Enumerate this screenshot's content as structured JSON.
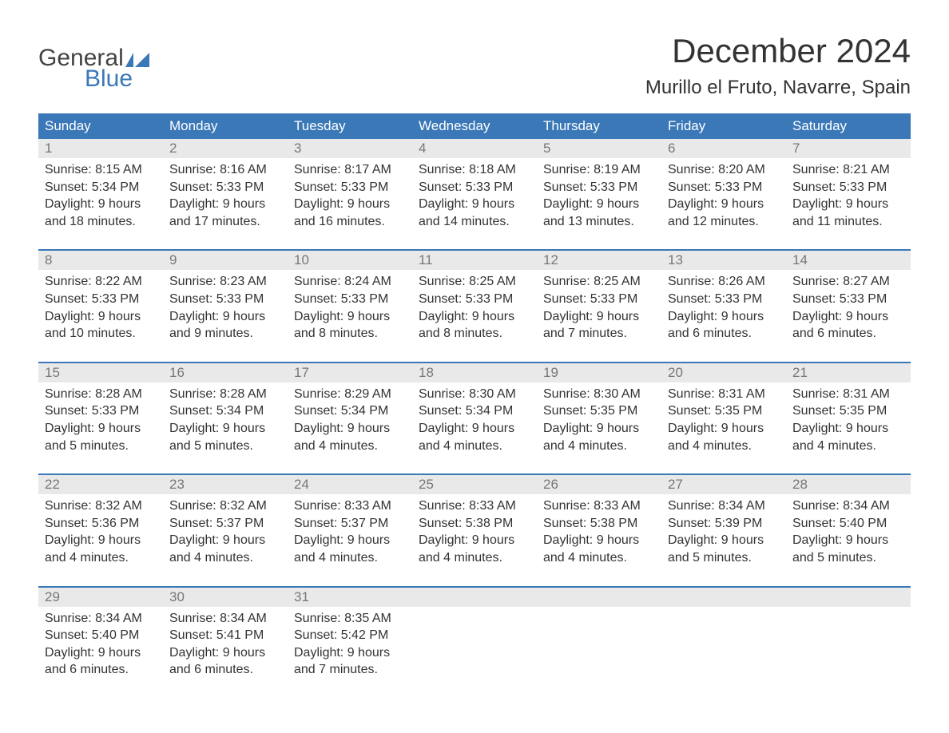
{
  "logo": {
    "word1": "General",
    "word2": "Blue"
  },
  "title": "December 2024",
  "location": "Murillo el Fruto, Navarre, Spain",
  "colors": {
    "header_bg": "#3a78b8",
    "header_text": "#ffffff",
    "daynum_bg": "#e9e9e9",
    "daynum_text": "#777777",
    "body_text": "#333333",
    "week_divider": "#3a78b8",
    "page_bg": "#ffffff",
    "logo_gray": "#444444",
    "logo_blue": "#3a78b8"
  },
  "typography": {
    "title_fontsize": 42,
    "location_fontsize": 24,
    "dayheader_fontsize": 17,
    "cell_fontsize": 16,
    "font_family": "Arial"
  },
  "layout": {
    "columns": 7,
    "grid_type": "calendar",
    "week_rows": 5
  },
  "day_headers": [
    "Sunday",
    "Monday",
    "Tuesday",
    "Wednesday",
    "Thursday",
    "Friday",
    "Saturday"
  ],
  "labels": {
    "sunrise": "Sunrise:",
    "sunset": "Sunset:",
    "daylight": "Daylight:"
  },
  "days": [
    {
      "n": "1",
      "sunrise": "8:15 AM",
      "sunset": "5:34 PM",
      "daylight": "9 hours and 18 minutes."
    },
    {
      "n": "2",
      "sunrise": "8:16 AM",
      "sunset": "5:33 PM",
      "daylight": "9 hours and 17 minutes."
    },
    {
      "n": "3",
      "sunrise": "8:17 AM",
      "sunset": "5:33 PM",
      "daylight": "9 hours and 16 minutes."
    },
    {
      "n": "4",
      "sunrise": "8:18 AM",
      "sunset": "5:33 PM",
      "daylight": "9 hours and 14 minutes."
    },
    {
      "n": "5",
      "sunrise": "8:19 AM",
      "sunset": "5:33 PM",
      "daylight": "9 hours and 13 minutes."
    },
    {
      "n": "6",
      "sunrise": "8:20 AM",
      "sunset": "5:33 PM",
      "daylight": "9 hours and 12 minutes."
    },
    {
      "n": "7",
      "sunrise": "8:21 AM",
      "sunset": "5:33 PM",
      "daylight": "9 hours and 11 minutes."
    },
    {
      "n": "8",
      "sunrise": "8:22 AM",
      "sunset": "5:33 PM",
      "daylight": "9 hours and 10 minutes."
    },
    {
      "n": "9",
      "sunrise": "8:23 AM",
      "sunset": "5:33 PM",
      "daylight": "9 hours and 9 minutes."
    },
    {
      "n": "10",
      "sunrise": "8:24 AM",
      "sunset": "5:33 PM",
      "daylight": "9 hours and 8 minutes."
    },
    {
      "n": "11",
      "sunrise": "8:25 AM",
      "sunset": "5:33 PM",
      "daylight": "9 hours and 8 minutes."
    },
    {
      "n": "12",
      "sunrise": "8:25 AM",
      "sunset": "5:33 PM",
      "daylight": "9 hours and 7 minutes."
    },
    {
      "n": "13",
      "sunrise": "8:26 AM",
      "sunset": "5:33 PM",
      "daylight": "9 hours and 6 minutes."
    },
    {
      "n": "14",
      "sunrise": "8:27 AM",
      "sunset": "5:33 PM",
      "daylight": "9 hours and 6 minutes."
    },
    {
      "n": "15",
      "sunrise": "8:28 AM",
      "sunset": "5:33 PM",
      "daylight": "9 hours and 5 minutes."
    },
    {
      "n": "16",
      "sunrise": "8:28 AM",
      "sunset": "5:34 PM",
      "daylight": "9 hours and 5 minutes."
    },
    {
      "n": "17",
      "sunrise": "8:29 AM",
      "sunset": "5:34 PM",
      "daylight": "9 hours and 4 minutes."
    },
    {
      "n": "18",
      "sunrise": "8:30 AM",
      "sunset": "5:34 PM",
      "daylight": "9 hours and 4 minutes."
    },
    {
      "n": "19",
      "sunrise": "8:30 AM",
      "sunset": "5:35 PM",
      "daylight": "9 hours and 4 minutes."
    },
    {
      "n": "20",
      "sunrise": "8:31 AM",
      "sunset": "5:35 PM",
      "daylight": "9 hours and 4 minutes."
    },
    {
      "n": "21",
      "sunrise": "8:31 AM",
      "sunset": "5:35 PM",
      "daylight": "9 hours and 4 minutes."
    },
    {
      "n": "22",
      "sunrise": "8:32 AM",
      "sunset": "5:36 PM",
      "daylight": "9 hours and 4 minutes."
    },
    {
      "n": "23",
      "sunrise": "8:32 AM",
      "sunset": "5:37 PM",
      "daylight": "9 hours and 4 minutes."
    },
    {
      "n": "24",
      "sunrise": "8:33 AM",
      "sunset": "5:37 PM",
      "daylight": "9 hours and 4 minutes."
    },
    {
      "n": "25",
      "sunrise": "8:33 AM",
      "sunset": "5:38 PM",
      "daylight": "9 hours and 4 minutes."
    },
    {
      "n": "26",
      "sunrise": "8:33 AM",
      "sunset": "5:38 PM",
      "daylight": "9 hours and 4 minutes."
    },
    {
      "n": "27",
      "sunrise": "8:34 AM",
      "sunset": "5:39 PM",
      "daylight": "9 hours and 5 minutes."
    },
    {
      "n": "28",
      "sunrise": "8:34 AM",
      "sunset": "5:40 PM",
      "daylight": "9 hours and 5 minutes."
    },
    {
      "n": "29",
      "sunrise": "8:34 AM",
      "sunset": "5:40 PM",
      "daylight": "9 hours and 6 minutes."
    },
    {
      "n": "30",
      "sunrise": "8:34 AM",
      "sunset": "5:41 PM",
      "daylight": "9 hours and 6 minutes."
    },
    {
      "n": "31",
      "sunrise": "8:35 AM",
      "sunset": "5:42 PM",
      "daylight": "9 hours and 7 minutes."
    }
  ]
}
